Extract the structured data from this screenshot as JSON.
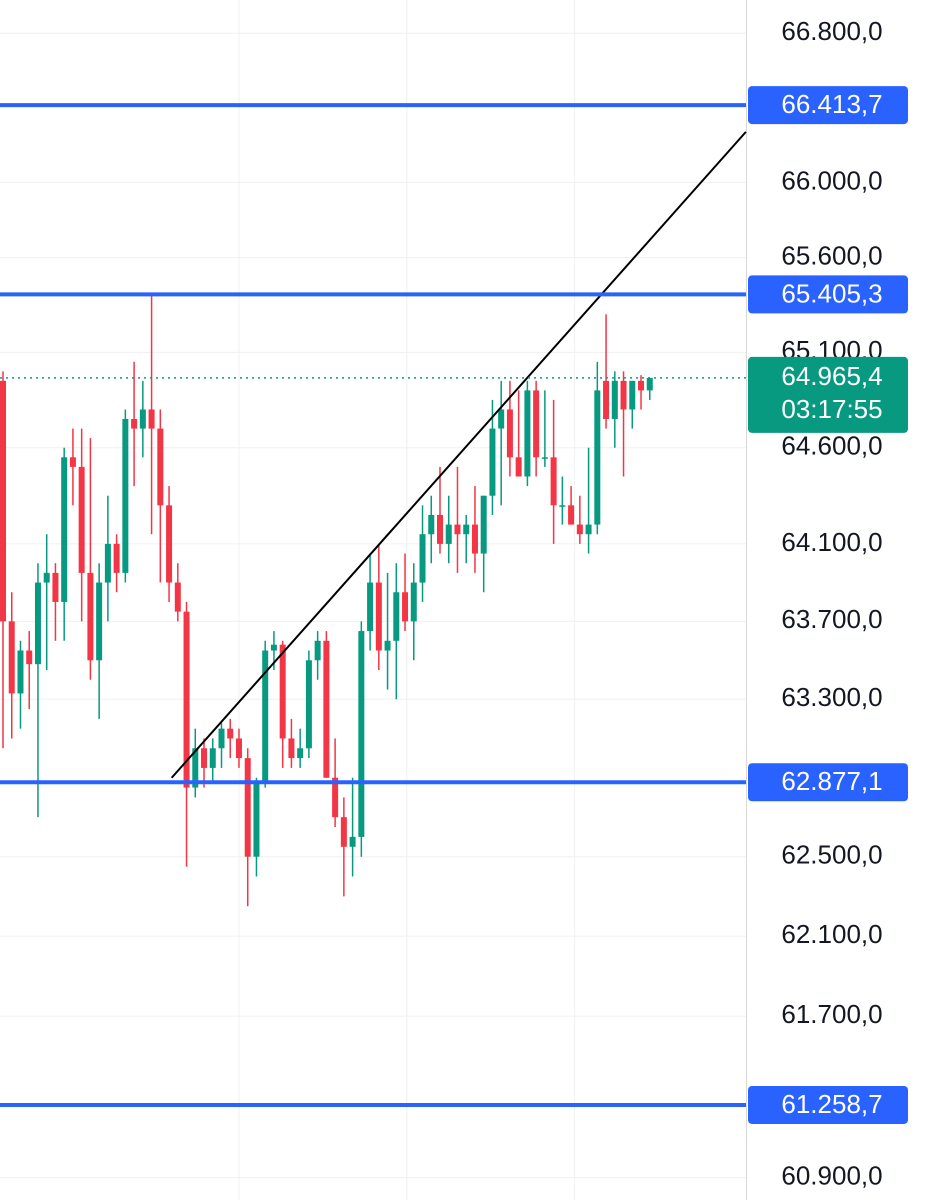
{
  "chart_data": {
    "type": "candlestick",
    "log": true,
    "grid": true,
    "up_color": "#089981",
    "down_color": "#f23645",
    "ylim": [
      60790,
      66980
    ],
    "yticks": [
      {
        "value": 66800,
        "label": "66.800,0"
      },
      {
        "value": 66000,
        "label": "66.000,0"
      },
      {
        "value": 65600,
        "label": "65.600,0"
      },
      {
        "value": 65100,
        "label": "65.100,0"
      },
      {
        "value": 64600,
        "label": "64.600,0"
      },
      {
        "value": 64100,
        "label": "64.100,0"
      },
      {
        "value": 63700,
        "label": "63.700,0"
      },
      {
        "value": 63300,
        "label": "63.300,0"
      },
      {
        "value": 62500,
        "label": "62.500,0"
      },
      {
        "value": 62100,
        "label": "62.100,0"
      },
      {
        "value": 61700,
        "label": "61.700,0"
      },
      {
        "value": 60900,
        "label": "60.900,0"
      }
    ],
    "x_grid": [
      27,
      46.2,
      65.4
    ],
    "ohlc": [
      [
        64950,
        65000,
        63050,
        63700
      ],
      [
        63700,
        63850,
        63100,
        63330
      ],
      [
        63330,
        63600,
        63150,
        63550
      ],
      [
        63550,
        63650,
        63250,
        63480
      ],
      [
        63480,
        64000,
        62700,
        63900
      ],
      [
        63900,
        64150,
        63450,
        63950
      ],
      [
        63950,
        64000,
        63600,
        63800
      ],
      [
        63800,
        64600,
        63600,
        64550
      ],
      [
        64550,
        64700,
        64300,
        64500
      ],
      [
        64500,
        64700,
        63700,
        63950
      ],
      [
        63950,
        64650,
        63400,
        63500
      ],
      [
        63500,
        64000,
        63200,
        63900
      ],
      [
        63900,
        64350,
        63700,
        64100
      ],
      [
        64100,
        64150,
        63850,
        63950
      ],
      [
        63950,
        64800,
        63900,
        64750
      ],
      [
        64750,
        65050,
        64400,
        64700
      ],
      [
        64700,
        64950,
        64550,
        64800
      ],
      [
        64800,
        65400,
        64150,
        64700
      ],
      [
        64700,
        64800,
        63900,
        64300
      ],
      [
        64300,
        64400,
        63800,
        63900
      ],
      [
        63900,
        64000,
        63700,
        63750
      ],
      [
        63750,
        63800,
        62450,
        62850
      ],
      [
        62850,
        63150,
        62800,
        63050
      ],
      [
        63050,
        63100,
        62850,
        62950
      ],
      [
        62950,
        63100,
        62880,
        63050
      ],
      [
        63050,
        63180,
        62950,
        63150
      ],
      [
        63150,
        63200,
        63000,
        63100
      ],
      [
        63100,
        63150,
        62950,
        63000
      ],
      [
        63000,
        63050,
        62250,
        62500
      ],
      [
        62500,
        62900,
        62400,
        62880
      ],
      [
        62880,
        63600,
        62850,
        63550
      ],
      [
        63550,
        63650,
        63450,
        63580
      ],
      [
        63580,
        63600,
        62950,
        63100
      ],
      [
        63100,
        63200,
        62950,
        63000
      ],
      [
        63000,
        63150,
        62950,
        63050
      ],
      [
        63050,
        63550,
        63000,
        63500
      ],
      [
        63500,
        63650,
        63400,
        63600
      ],
      [
        63600,
        63650,
        62900,
        62900
      ],
      [
        62900,
        63100,
        62650,
        62700
      ],
      [
        62700,
        62800,
        62300,
        62550
      ],
      [
        62550,
        62900,
        62400,
        62600
      ],
      [
        62600,
        63700,
        62500,
        63650
      ],
      [
        63650,
        64050,
        63550,
        63900
      ],
      [
        63900,
        64100,
        63450,
        63550
      ],
      [
        63550,
        63950,
        63350,
        63600
      ],
      [
        63600,
        64000,
        63300,
        63850
      ],
      [
        63850,
        64050,
        63650,
        63700
      ],
      [
        63700,
        64000,
        63500,
        63900
      ],
      [
        63900,
        64300,
        63800,
        64150
      ],
      [
        64150,
        64350,
        64000,
        64250
      ],
      [
        64250,
        64500,
        64050,
        64100
      ],
      [
        64100,
        64350,
        64000,
        64200
      ],
      [
        64200,
        64500,
        63950,
        64150
      ],
      [
        64150,
        64250,
        64000,
        64200
      ],
      [
        64200,
        64400,
        63950,
        64050
      ],
      [
        64050,
        64350,
        63850,
        64350
      ],
      [
        64350,
        64850,
        64250,
        64700
      ],
      [
        64700,
        64950,
        64300,
        64800
      ],
      [
        64800,
        64950,
        64450,
        64550
      ],
      [
        64550,
        64900,
        64450,
        64450
      ],
      [
        64450,
        64950,
        64400,
        64900
      ],
      [
        64900,
        64950,
        64450,
        64550
      ],
      [
        64550,
        64900,
        64500,
        64550
      ],
      [
        64550,
        64850,
        64100,
        64300
      ],
      [
        64300,
        64450,
        64200,
        64300
      ],
      [
        64300,
        64400,
        64200,
        64200
      ],
      [
        64200,
        64350,
        64100,
        64150
      ],
      [
        64150,
        64600,
        64050,
        64200
      ],
      [
        64200,
        65050,
        64150,
        64900
      ],
      [
        64950,
        65300,
        64700,
        64750
      ],
      [
        64750,
        65000,
        64600,
        64950
      ],
      [
        64950,
        65000,
        64450,
        64800
      ],
      [
        64800,
        64950,
        64700,
        64950
      ],
      [
        64950,
        64980,
        64800,
        64900
      ],
      [
        64900,
        64950,
        64850,
        64965.4
      ]
    ],
    "levels": [
      {
        "value": 66413.7,
        "label": "66.413,7"
      },
      {
        "value": 65405.3,
        "label": "65.405,3"
      },
      {
        "value": 62877.1,
        "label": "62.877,1"
      },
      {
        "value": 61258.7,
        "label": "61.258,7"
      }
    ],
    "level_color": "#2962ff",
    "last_price": {
      "value": 64965.4,
      "label": "64.965,4"
    },
    "countdown": "03:17:55",
    "trendline": {
      "x": [
        19.3,
        85
      ],
      "y": [
        62900,
        66270
      ]
    }
  }
}
